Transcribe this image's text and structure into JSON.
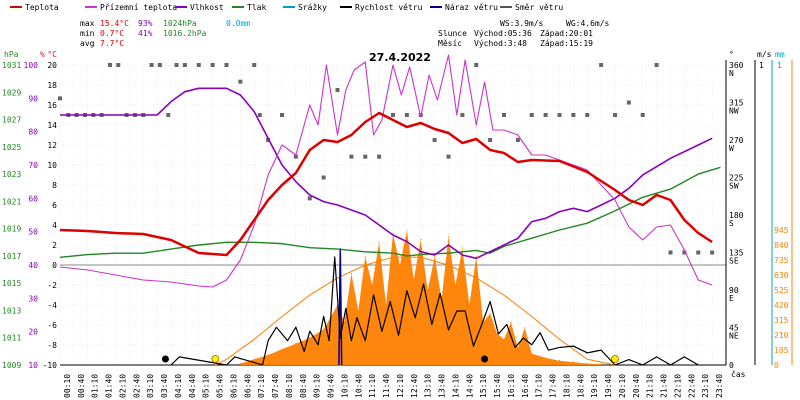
{
  "legend": [
    {
      "label": "Teplota",
      "color": "#dd0000"
    },
    {
      "label": "Přízemní teplota",
      "color": "#cc33cc"
    },
    {
      "label": "Vlhkost",
      "color": "#8800bb"
    },
    {
      "label": "Tlak",
      "color": "#228822"
    },
    {
      "label": "Srážky",
      "color": "#00a0cc"
    },
    {
      "label": "Rychlost větru",
      "color": "#000000"
    },
    {
      "label": "Náraz větru",
      "color": "#000088"
    },
    {
      "label": "Směr větru",
      "color": "#555555"
    }
  ],
  "stats": {
    "max_label": "max",
    "min_label": "min",
    "avg_label": "avg",
    "max_temp": "15.4°C",
    "max_hum": "93%",
    "max_press": "1024hPa",
    "max_rain": "0.0mm",
    "min_temp": "0.7°C",
    "min_hum": "41%",
    "min_press": "1016.2hPa",
    "avg_temp": "7.7°C"
  },
  "wind_info": {
    "ws": "WS:3.9m/s",
    "wg": "WG:4.6m/s"
  },
  "sun_info": {
    "sun_label": "Slunce",
    "sunrise": "Východ:05:36",
    "sunset": "Západ:20:01",
    "moon_label": "Měsíc",
    "moonrise": "Východ:3:48",
    "moonset": "Západ:15:19"
  },
  "chart_data": {
    "type": "line",
    "title": "27.4.2022",
    "axes": {
      "pressure": {
        "label": "hPa",
        "ticks": [
          "1031",
          "1029",
          "1027",
          "1025",
          "1023",
          "1021",
          "1019",
          "1017",
          "1015",
          "1013",
          "1011",
          "1009"
        ]
      },
      "humidity": {
        "label": "%",
        "ticks": [
          "100",
          "90",
          "80",
          "70",
          "60",
          "50",
          "40",
          "30",
          "20",
          "10"
        ]
      },
      "temperature": {
        "label": "°C",
        "ticks": [
          "20",
          "18",
          "16",
          "14",
          "12",
          "10",
          "8",
          "6",
          "4",
          "2",
          "0",
          "-2",
          "-4",
          "-6",
          "-8",
          "-10"
        ]
      },
      "direction": {
        "label": "°",
        "ticks": [
          "360",
          "315",
          "270",
          "225",
          "180",
          "135",
          "90",
          "45",
          "0"
        ]
      },
      "direction_names": [
        "N",
        "NW",
        "W",
        "SW",
        "S",
        "SE",
        "E",
        "NE"
      ],
      "wind": {
        "label": "m/s",
        "ticks": [
          "1"
        ]
      },
      "rain": {
        "label": "mm",
        "ticks": [
          "1"
        ]
      },
      "radiation": {
        "ticks": [
          "945",
          "840",
          "735",
          "630",
          "525",
          "420",
          "315",
          "210",
          "105",
          "0"
        ]
      },
      "x_unit": "čas",
      "x_ticks": [
        "00:10",
        "00:40",
        "01:10",
        "01:40",
        "02:10",
        "02:40",
        "03:10",
        "03:40",
        "04:10",
        "04:40",
        "05:10",
        "05:40",
        "06:10",
        "06:40",
        "07:10",
        "07:40",
        "08:10",
        "08:40",
        "09:10",
        "09:40",
        "10:10",
        "10:40",
        "11:10",
        "11:40",
        "12:10",
        "12:40",
        "13:10",
        "13:40",
        "14:10",
        "14:40",
        "15:10",
        "15:40",
        "16:10",
        "16:40",
        "17:10",
        "17:40",
        "18:10",
        "18:40",
        "19:10",
        "19:40",
        "20:10",
        "20:40",
        "21:10",
        "21:40",
        "22:10",
        "22:40",
        "23:10",
        "23:40"
      ]
    },
    "temperature": {
      "name": "Teplota",
      "color": "#dd0000",
      "x": [
        0,
        1,
        2,
        3,
        4,
        5,
        6,
        6.5,
        7,
        7.5,
        8,
        8.5,
        9,
        9.5,
        10,
        10.5,
        11,
        11.5,
        12,
        12.5,
        13,
        13.5,
        14,
        14.5,
        15,
        15.5,
        16,
        16.5,
        17,
        18,
        19,
        20,
        20.5,
        21,
        21.5,
        22,
        22.5,
        23,
        23.5
      ],
      "y": [
        3.5,
        3.4,
        3.2,
        3.1,
        2.5,
        1.2,
        1.0,
        2.5,
        4.5,
        6.5,
        8.0,
        9.2,
        11.5,
        12.5,
        12.3,
        13.0,
        14.3,
        15.2,
        14.5,
        13.8,
        14.2,
        13.6,
        13.2,
        12.2,
        12.6,
        11.5,
        11.2,
        10.3,
        10.5,
        10.4,
        9.3,
        7.5,
        6.5,
        6.0,
        7.0,
        6.5,
        4.5,
        3.2,
        2.3
      ]
    },
    "ground_temperature": {
      "name": "Přízemní teplota",
      "color": "#cc33cc",
      "x": [
        0,
        1,
        2,
        3,
        4,
        5,
        5.5,
        6,
        6.5,
        7,
        7.5,
        8,
        8.5,
        9,
        9.3,
        9.6,
        10,
        10.3,
        10.6,
        11,
        11.3,
        11.6,
        12,
        12.3,
        12.6,
        13,
        13.3,
        13.6,
        14,
        14.3,
        14.6,
        15,
        15.3,
        15.6,
        16,
        16.5,
        17,
        17.5,
        18,
        19,
        19.5,
        20,
        20.5,
        21,
        21.5,
        22,
        22.5,
        23,
        23.5
      ],
      "y": [
        -0.2,
        -0.5,
        -1.0,
        -1.5,
        -1.7,
        -2.1,
        -2.2,
        -1.5,
        0.5,
        4.0,
        9.0,
        12.0,
        11.0,
        16.0,
        14.0,
        20.0,
        13.0,
        17.5,
        19.5,
        20.3,
        13.0,
        14.5,
        20.0,
        17.0,
        19.8,
        14.8,
        19.0,
        16.5,
        21.0,
        15.0,
        20.5,
        14.0,
        18.3,
        13.5,
        13.5,
        13.0,
        11.0,
        11.0,
        10.5,
        9.5,
        8.0,
        6.5,
        3.8,
        2.5,
        3.8,
        4.0,
        1.5,
        -1.5,
        -2.0
      ]
    },
    "humidity": {
      "name": "Vlhkost",
      "color": "#8800bb",
      "x": [
        0,
        1,
        2,
        3,
        3.5,
        4,
        4.5,
        5,
        6,
        6.5,
        7,
        7.5,
        8,
        8.5,
        9,
        9.5,
        10,
        11,
        11.5,
        12,
        12.5,
        13,
        13.5,
        14,
        14.5,
        15,
        15.5,
        16,
        16.5,
        17,
        17.5,
        18,
        18.5,
        19,
        19.5,
        20,
        20.5,
        21,
        22,
        23,
        23.5
      ],
      "y": [
        85,
        85,
        85,
        85,
        85,
        89,
        92,
        93,
        93,
        91,
        86,
        78,
        70,
        65,
        61,
        59,
        58,
        55,
        52,
        49,
        47,
        44,
        43,
        46,
        43,
        42,
        44,
        46,
        48,
        53,
        54,
        56,
        57,
        56,
        58,
        60,
        63,
        67,
        72,
        76,
        78
      ]
    },
    "pressure": {
      "name": "Tlak",
      "color": "#228822",
      "x": [
        0,
        1,
        2,
        3,
        4,
        5,
        6,
        7,
        8,
        9,
        10,
        11,
        12,
        12.5,
        13,
        14,
        15,
        15.5,
        16,
        17,
        18,
        19,
        20,
        21,
        22,
        23,
        23.8
      ],
      "y": [
        1016.9,
        1017.1,
        1017.2,
        1017.2,
        1017.5,
        1017.8,
        1018.0,
        1018.0,
        1017.9,
        1017.6,
        1017.5,
        1017.3,
        1017.2,
        1017.0,
        1017.1,
        1017.2,
        1017.4,
        1017.2,
        1017.7,
        1018.3,
        1018.9,
        1019.4,
        1020.3,
        1021.3,
        1021.9,
        1023.0,
        1023.5
      ]
    },
    "rain": {
      "name": "Srážky",
      "color": "#00a0cc",
      "total": 0.0
    },
    "wind_speed": {
      "name": "Rychlost větru",
      "color": "#000000",
      "x": [
        4.0,
        4.3,
        6.0,
        6.3,
        7.3,
        7.5,
        7.8,
        8.2,
        8.5,
        8.8,
        9.0,
        9.3,
        9.5,
        9.7,
        9.9,
        10.1,
        10.3,
        10.5,
        10.7,
        11.0,
        11.3,
        11.6,
        11.9,
        12.2,
        12.5,
        12.8,
        13.1,
        13.4,
        13.7,
        14.0,
        14.3,
        14.6,
        14.9,
        15.2,
        15.5,
        15.8,
        16.1,
        16.4,
        16.7,
        17.0,
        17.3,
        17.6,
        18.0,
        18.5,
        19.0,
        19.5,
        20.0,
        20.5,
        21.0,
        21.5,
        22.0,
        22.5,
        23.0
      ],
      "y": [
        0,
        0.6,
        0,
        0.6,
        0,
        1.8,
        2.8,
        1.8,
        2.8,
        1.0,
        2.5,
        1.5,
        3.6,
        1.8,
        8.0,
        2.0,
        4.2,
        1.8,
        3.5,
        1.8,
        5.2,
        2.5,
        4.7,
        2.2,
        5.5,
        3.5,
        6.0,
        3.0,
        5.3,
        2.6,
        4.0,
        4.0,
        1.4,
        3.0,
        4.7,
        2.3,
        3.0,
        1.3,
        2.0,
        1.5,
        2.4,
        1.1,
        1.3,
        1.4,
        0.9,
        1.1,
        0,
        0.4,
        0,
        0.6,
        0,
        0.6,
        0
      ]
    },
    "wind_gust": {
      "name": "Náraz větru",
      "color": "#000088",
      "x": [
        10.05,
        10.1,
        10.15
      ],
      "y": [
        0,
        8.6,
        0
      ]
    },
    "solar_radiation": {
      "color": "#ff8000",
      "x": [
        6.5,
        7,
        7.5,
        8,
        8.5,
        9,
        9.5,
        10,
        10.25,
        10.5,
        10.75,
        11,
        11.25,
        11.5,
        11.75,
        12,
        12.25,
        12.5,
        12.75,
        13,
        13.25,
        13.5,
        13.75,
        14,
        14.25,
        14.5,
        14.75,
        15,
        15.25,
        15.5,
        15.75,
        16,
        16.25,
        16.5,
        16.75,
        17,
        17.5,
        18,
        18.5,
        19,
        19.5
      ],
      "y": [
        10,
        40,
        70,
        110,
        150,
        190,
        250,
        420,
        300,
        640,
        380,
        760,
        560,
        860,
        420,
        920,
        700,
        940,
        600,
        880,
        520,
        760,
        460,
        900,
        560,
        820,
        420,
        760,
        300,
        360,
        220,
        180,
        300,
        120,
        260,
        80,
        50,
        30,
        20,
        10,
        5
      ]
    },
    "theoretical_radiation": {
      "color": "#ff8000",
      "x": [
        5.6,
        6,
        7,
        8,
        9,
        10,
        11,
        12,
        13,
        14,
        15,
        16,
        17,
        18,
        19,
        20.0
      ],
      "y": [
        0,
        40,
        180,
        340,
        490,
        610,
        700,
        755,
        755,
        700,
        610,
        490,
        340,
        180,
        40,
        0
      ]
    },
    "wind_direction": {
      "name": "Směr větru",
      "color": "#555555",
      "x": [
        0,
        0.3,
        0.6,
        0.9,
        1.2,
        1.5,
        1.8,
        2.1,
        2.4,
        2.7,
        3.0,
        3.3,
        3.6,
        3.9,
        4.2,
        4.5,
        5,
        5.5,
        6,
        6.5,
        7,
        7.2,
        7.5,
        8,
        8.5,
        9,
        9.5,
        10,
        10.5,
        11,
        11.5,
        12,
        12.5,
        13,
        13.5,
        14,
        14.5,
        15,
        15.5,
        16,
        16.5,
        17,
        17.5,
        18,
        18.5,
        19,
        19.5,
        20,
        20.5,
        21,
        21.5,
        22,
        22.5,
        23,
        23.5
      ],
      "y": [
        320,
        300,
        300,
        300,
        300,
        300,
        360,
        360,
        300,
        300,
        300,
        360,
        360,
        300,
        360,
        360,
        360,
        360,
        360,
        340,
        360,
        300,
        270,
        300,
        250,
        200,
        225,
        330,
        250,
        250,
        250,
        300,
        300,
        300,
        270,
        250,
        300,
        360,
        270,
        300,
        270,
        300,
        300,
        300,
        300,
        300,
        360,
        300,
        315,
        300,
        360,
        135,
        135,
        135,
        135
      ]
    },
    "sun_markers": [
      5.6,
      20.0
    ],
    "moon_markers": [
      3.8,
      15.3
    ]
  }
}
